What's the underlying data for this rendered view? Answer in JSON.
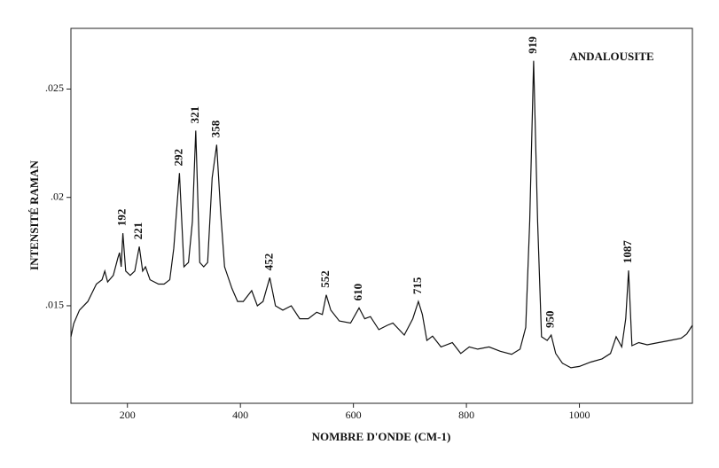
{
  "chart_data": {
    "type": "line",
    "xlabel": "NOMBRE D'ONDE (CM-1)",
    "ylabel": "INTENSITÉ RAMAN",
    "xlim": [
      100,
      1200
    ],
    "xticks": [
      200,
      400,
      600,
      800,
      1000
    ],
    "ylim": [
      0.0105,
      0.0278
    ],
    "yticks": [
      {
        "value": 0.015,
        "label": ".015"
      },
      {
        "value": 0.02,
        "label": ".02"
      },
      {
        "value": 0.025,
        "label": ".025"
      }
    ],
    "series": [
      {
        "name": "ANDALOUSITE",
        "color": "#111111",
        "x": [
          100,
          105,
          115,
          130,
          145,
          155,
          160,
          165,
          175,
          183,
          186,
          189,
          192,
          197,
          205,
          213,
          221,
          227,
          232,
          240,
          255,
          265,
          275,
          282,
          292,
          300,
          308,
          315,
          321,
          328,
          335,
          342,
          350,
          358,
          365,
          372,
          385,
          395,
          405,
          420,
          430,
          440,
          452,
          462,
          475,
          490,
          505,
          520,
          535,
          545,
          552,
          560,
          575,
          595,
          610,
          620,
          630,
          645,
          660,
          670,
          690,
          705,
          715,
          722,
          730,
          740,
          755,
          775,
          790,
          805,
          820,
          840,
          860,
          880,
          895,
          905,
          912,
          919,
          926,
          933,
          943,
          950,
          958,
          970,
          985,
          1000,
          1020,
          1040,
          1055,
          1065,
          1075,
          1082,
          1087,
          1093,
          1105,
          1120,
          1140,
          1160,
          1180,
          1190,
          1200
        ],
        "values": [
          0.01357,
          0.01418,
          0.0148,
          0.0152,
          0.016,
          0.0162,
          0.0166,
          0.0161,
          0.0164,
          0.0172,
          0.01745,
          0.0168,
          0.01835,
          0.0166,
          0.0164,
          0.0166,
          0.01773,
          0.0166,
          0.0168,
          0.0162,
          0.016,
          0.016,
          0.0162,
          0.01765,
          0.02112,
          0.0168,
          0.017,
          0.01888,
          0.02308,
          0.017,
          0.0168,
          0.017,
          0.0209,
          0.02243,
          0.0193,
          0.0168,
          0.0158,
          0.0152,
          0.0152,
          0.0157,
          0.015,
          0.0152,
          0.0163,
          0.015,
          0.0148,
          0.015,
          0.0144,
          0.0144,
          0.0147,
          0.0146,
          0.0155,
          0.0148,
          0.0143,
          0.0142,
          0.0149,
          0.0144,
          0.0145,
          0.0139,
          0.0141,
          0.0142,
          0.01365,
          0.0144,
          0.0152,
          0.0146,
          0.0134,
          0.0136,
          0.0131,
          0.0133,
          0.0128,
          0.0131,
          0.013,
          0.0131,
          0.0129,
          0.01276,
          0.013,
          0.014,
          0.0189,
          0.0263,
          0.0189,
          0.01357,
          0.0134,
          0.01365,
          0.0128,
          0.01235,
          0.01214,
          0.0122,
          0.0124,
          0.01255,
          0.0128,
          0.01357,
          0.0131,
          0.0144,
          0.01663,
          0.01316,
          0.0133,
          0.0132,
          0.0133,
          0.0134,
          0.0135,
          0.0137,
          0.0141
        ]
      }
    ],
    "annotations": [
      {
        "text": "192",
        "x": 192
      },
      {
        "text": "221",
        "x": 221
      },
      {
        "text": "292",
        "x": 292
      },
      {
        "text": "321",
        "x": 321
      },
      {
        "text": "358",
        "x": 358
      },
      {
        "text": "452",
        "x": 452
      },
      {
        "text": "552",
        "x": 552
      },
      {
        "text": "610",
        "x": 610
      },
      {
        "text": "715",
        "x": 715
      },
      {
        "text": "919",
        "x": 919
      },
      {
        "text": "950",
        "x": 950
      },
      {
        "text": "1087",
        "x": 1087
      }
    ]
  }
}
